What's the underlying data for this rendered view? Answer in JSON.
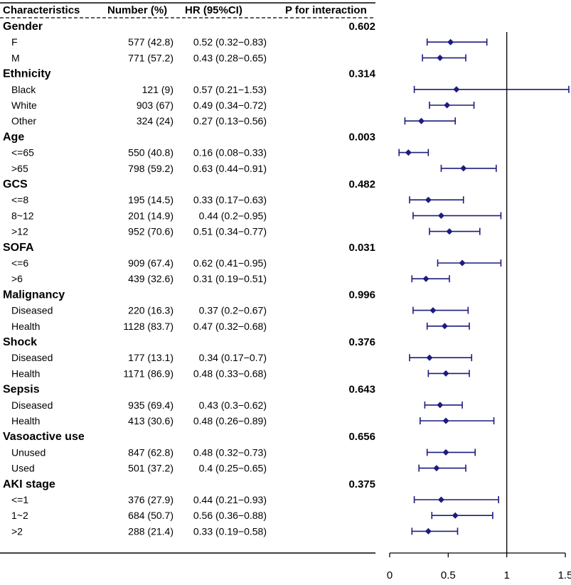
{
  "chart_data": {
    "type": "forest",
    "title": "",
    "xlabel": "",
    "ylabel": "",
    "xlim": [
      0,
      1.5
    ],
    "reference_line": 1,
    "x_ticks": [
      "0",
      "0.5",
      "1",
      "1.5"
    ],
    "tick_values": [
      0,
      0.5,
      1,
      1.5
    ],
    "columns": [
      "Characteristics",
      "Number (%)",
      "HR (95%CI)",
      "P for interaction"
    ],
    "colors": {
      "marker": "#1c1c7f",
      "axis": "#000000"
    },
    "groups": [
      {
        "name": "Gender",
        "p": "0.602",
        "rows": [
          {
            "label": "F",
            "n": "577 (42.8)",
            "hr_text": "0.52 (0.32−0.83)",
            "hr": 0.52,
            "lo": 0.32,
            "hi": 0.83
          },
          {
            "label": "M",
            "n": "771 (57.2)",
            "hr_text": "0.43 (0.28−0.65)",
            "hr": 0.43,
            "lo": 0.28,
            "hi": 0.65
          }
        ]
      },
      {
        "name": "Ethnicity",
        "p": "0.314",
        "rows": [
          {
            "label": "Black",
            "n": "121 (9)",
            "hr_text": "0.57 (0.21−1.53)",
            "hr": 0.57,
            "lo": 0.21,
            "hi": 1.53
          },
          {
            "label": "White",
            "n": "903 (67)",
            "hr_text": "0.49 (0.34−0.72)",
            "hr": 0.49,
            "lo": 0.34,
            "hi": 0.72
          },
          {
            "label": "Other",
            "n": "324 (24)",
            "hr_text": "0.27 (0.13−0.56)",
            "hr": 0.27,
            "lo": 0.13,
            "hi": 0.56
          }
        ]
      },
      {
        "name": "Age",
        "p": "0.003",
        "rows": [
          {
            "label": "<=65",
            "n": "550 (40.8)",
            "hr_text": "0.16 (0.08−0.33)",
            "hr": 0.16,
            "lo": 0.08,
            "hi": 0.33
          },
          {
            "label": ">65",
            "n": "798 (59.2)",
            "hr_text": "0.63 (0.44−0.91)",
            "hr": 0.63,
            "lo": 0.44,
            "hi": 0.91
          }
        ]
      },
      {
        "name": "GCS",
        "p": "0.482",
        "rows": [
          {
            "label": "<=8",
            "n": "195 (14.5)",
            "hr_text": "0.33 (0.17−0.63)",
            "hr": 0.33,
            "lo": 0.17,
            "hi": 0.63
          },
          {
            "label": "8~12",
            "n": "201 (14.9)",
            "hr_text": "0.44 (0.2−0.95)",
            "hr": 0.44,
            "lo": 0.2,
            "hi": 0.95
          },
          {
            "label": ">12",
            "n": "952 (70.6)",
            "hr_text": "0.51 (0.34−0.77)",
            "hr": 0.51,
            "lo": 0.34,
            "hi": 0.77
          }
        ]
      },
      {
        "name": "SOFA",
        "p": "0.031",
        "rows": [
          {
            "label": "<=6",
            "n": "909 (67.4)",
            "hr_text": "0.62 (0.41−0.95)",
            "hr": 0.62,
            "lo": 0.41,
            "hi": 0.95
          },
          {
            "label": ">6",
            "n": "439 (32.6)",
            "hr_text": "0.31 (0.19−0.51)",
            "hr": 0.31,
            "lo": 0.19,
            "hi": 0.51
          }
        ]
      },
      {
        "name": "Malignancy",
        "p": "0.996",
        "rows": [
          {
            "label": "Diseased",
            "n": "220 (16.3)",
            "hr_text": "0.37 (0.2−0.67)",
            "hr": 0.37,
            "lo": 0.2,
            "hi": 0.67
          },
          {
            "label": "Health",
            "n": "1128 (83.7)",
            "hr_text": "0.47 (0.32−0.68)",
            "hr": 0.47,
            "lo": 0.32,
            "hi": 0.68
          }
        ]
      },
      {
        "name": "Shock",
        "p": "0.376",
        "rows": [
          {
            "label": "Diseased",
            "n": "177 (13.1)",
            "hr_text": "0.34 (0.17−0.7)",
            "hr": 0.34,
            "lo": 0.17,
            "hi": 0.7
          },
          {
            "label": "Health",
            "n": "1171 (86.9)",
            "hr_text": "0.48 (0.33−0.68)",
            "hr": 0.48,
            "lo": 0.33,
            "hi": 0.68
          }
        ]
      },
      {
        "name": "Sepsis",
        "p": "0.643",
        "rows": [
          {
            "label": "Diseased",
            "n": "935 (69.4)",
            "hr_text": "0.43 (0.3−0.62)",
            "hr": 0.43,
            "lo": 0.3,
            "hi": 0.62
          },
          {
            "label": "Health",
            "n": "413 (30.6)",
            "hr_text": "0.48 (0.26−0.89)",
            "hr": 0.48,
            "lo": 0.26,
            "hi": 0.89
          }
        ]
      },
      {
        "name": "Vasoactive use",
        "p": "0.656",
        "rows": [
          {
            "label": "Unused",
            "n": "847 (62.8)",
            "hr_text": "0.48 (0.32−0.73)",
            "hr": 0.48,
            "lo": 0.32,
            "hi": 0.73
          },
          {
            "label": "Used",
            "n": "501 (37.2)",
            "hr_text": "0.4 (0.25−0.65)",
            "hr": 0.4,
            "lo": 0.25,
            "hi": 0.65
          }
        ]
      },
      {
        "name": "AKI stage",
        "p": "0.375",
        "rows": [
          {
            "label": "<=1",
            "n": "376 (27.9)",
            "hr_text": "0.44 (0.21−0.93)",
            "hr": 0.44,
            "lo": 0.21,
            "hi": 0.93
          },
          {
            "label": "1~2",
            "n": "684 (50.7)",
            "hr_text": "0.56 (0.36−0.88)",
            "hr": 0.56,
            "lo": 0.36,
            "hi": 0.88
          },
          {
            "label": ">2",
            "n": "288 (21.4)",
            "hr_text": "0.33 (0.19−0.58)",
            "hr": 0.33,
            "lo": 0.19,
            "hi": 0.58
          }
        ]
      }
    ]
  }
}
